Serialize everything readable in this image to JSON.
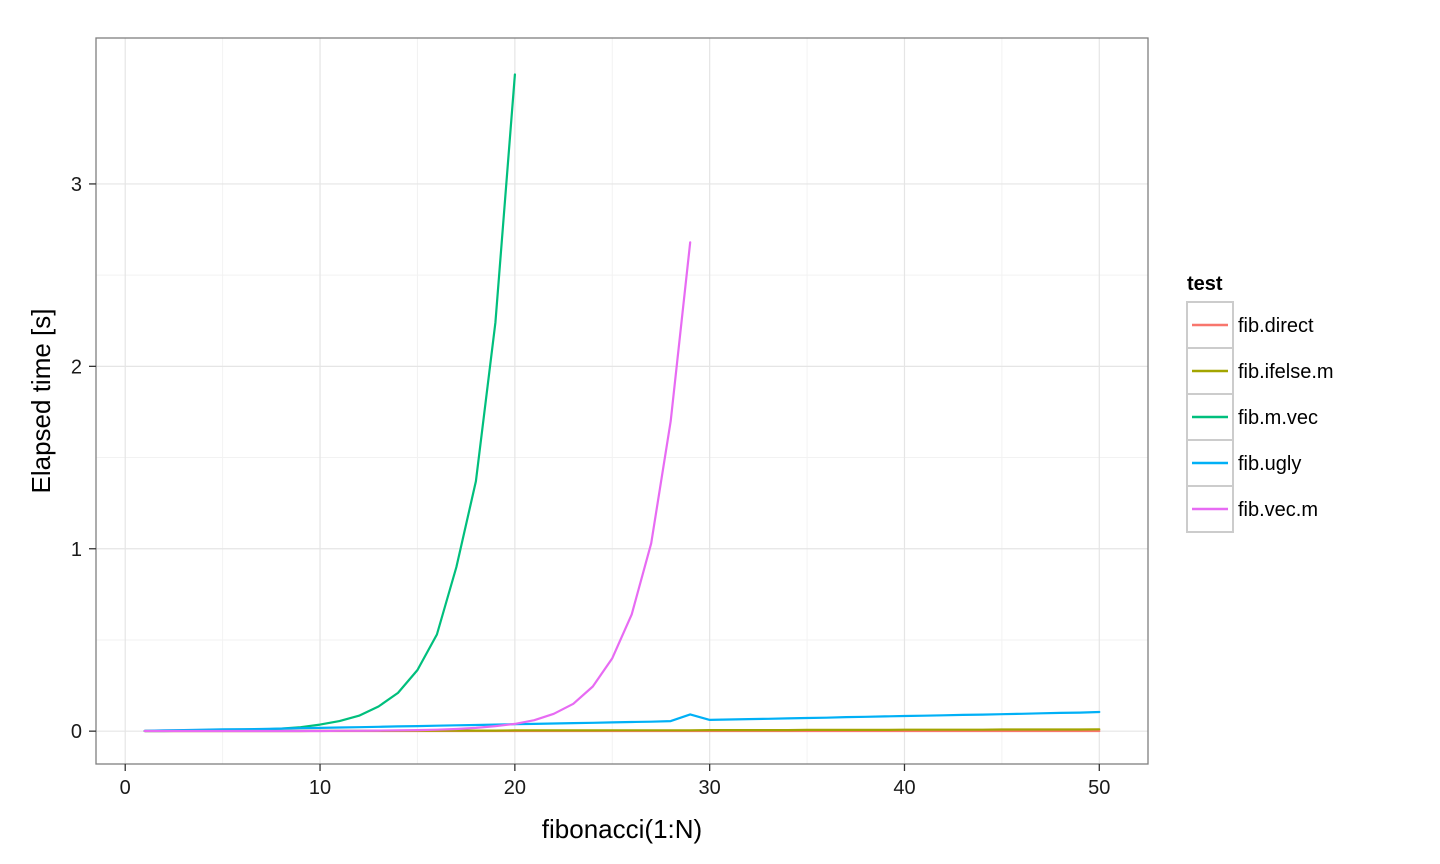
{
  "chart_data": {
    "type": "line",
    "title": "",
    "xlabel": "fibonacci(1:N)",
    "ylabel": "Elapsed time [s]",
    "xlim": [
      -1.5,
      52.5
    ],
    "ylim": [
      -0.18,
      3.8
    ],
    "x_ticks": [
      0,
      10,
      20,
      30,
      40,
      50
    ],
    "y_ticks": [
      0,
      1,
      2,
      3
    ],
    "grid": true,
    "legend": {
      "title": "test",
      "position": "right"
    },
    "series": [
      {
        "name": "fib.direct",
        "color": "#F8766D",
        "x": [
          1,
          2,
          3,
          4,
          5,
          6,
          7,
          8,
          9,
          10,
          11,
          12,
          13,
          14,
          15,
          16,
          17,
          18,
          19,
          20,
          21,
          22,
          23,
          24,
          25,
          26,
          27,
          28,
          29,
          30,
          31,
          32,
          33,
          34,
          35,
          36,
          37,
          38,
          39,
          40,
          41,
          42,
          43,
          44,
          45,
          46,
          47,
          48,
          49,
          50
        ],
        "y": [
          0.001,
          0.001,
          0.001,
          0.001,
          0.001,
          0.001,
          0.001,
          0.001,
          0.001,
          0.001,
          0.001,
          0.001,
          0.001,
          0.001,
          0.001,
          0.001,
          0.001,
          0.001,
          0.001,
          0.001,
          0.001,
          0.001,
          0.001,
          0.001,
          0.001,
          0.001,
          0.001,
          0.001,
          0.001,
          0.001,
          0.001,
          0.001,
          0.001,
          0.001,
          0.001,
          0.001,
          0.001,
          0.001,
          0.001,
          0.001,
          0.001,
          0.001,
          0.001,
          0.001,
          0.001,
          0.001,
          0.001,
          0.001,
          0.001,
          0.001
        ]
      },
      {
        "name": "fib.ifelse.m",
        "color": "#A3A500",
        "x": [
          1,
          2,
          3,
          4,
          5,
          6,
          7,
          8,
          9,
          10,
          11,
          12,
          13,
          14,
          15,
          16,
          17,
          18,
          19,
          20,
          21,
          22,
          23,
          24,
          25,
          26,
          27,
          28,
          29,
          30,
          31,
          32,
          33,
          34,
          35,
          36,
          37,
          38,
          39,
          40,
          41,
          42,
          43,
          44,
          45,
          46,
          47,
          48,
          49,
          50
        ],
        "y": [
          0.001,
          0.001,
          0.001,
          0.001,
          0.001,
          0.001,
          0.001,
          0.001,
          0.001,
          0.002,
          0.002,
          0.002,
          0.002,
          0.002,
          0.003,
          0.003,
          0.003,
          0.003,
          0.003,
          0.004,
          0.004,
          0.004,
          0.004,
          0.004,
          0.005,
          0.005,
          0.005,
          0.005,
          0.005,
          0.006,
          0.006,
          0.006,
          0.006,
          0.006,
          0.007,
          0.007,
          0.007,
          0.007,
          0.007,
          0.008,
          0.008,
          0.008,
          0.008,
          0.008,
          0.009,
          0.009,
          0.009,
          0.009,
          0.009,
          0.01
        ]
      },
      {
        "name": "fib.m.vec",
        "color": "#00BF7D",
        "x": [
          1,
          2,
          3,
          4,
          5,
          6,
          7,
          8,
          9,
          10,
          11,
          12,
          13,
          14,
          15,
          16,
          17,
          18,
          19,
          20
        ],
        "y": [
          0.001,
          0.001,
          0.002,
          0.003,
          0.004,
          0.006,
          0.009,
          0.014,
          0.022,
          0.036,
          0.055,
          0.085,
          0.135,
          0.21,
          0.335,
          0.53,
          0.9,
          1.37,
          2.24,
          3.6
        ]
      },
      {
        "name": "fib.ugly",
        "color": "#00B0F6",
        "x": [
          1,
          2,
          3,
          4,
          5,
          6,
          7,
          8,
          9,
          10,
          11,
          12,
          13,
          14,
          15,
          16,
          17,
          18,
          19,
          20,
          21,
          22,
          23,
          24,
          25,
          26,
          27,
          28,
          29,
          30,
          31,
          32,
          33,
          34,
          35,
          36,
          37,
          38,
          39,
          40,
          41,
          42,
          43,
          44,
          45,
          46,
          47,
          48,
          49,
          50
        ],
        "y": [
          0.002,
          0.004,
          0.006,
          0.008,
          0.01,
          0.011,
          0.012,
          0.014,
          0.016,
          0.018,
          0.02,
          0.022,
          0.024,
          0.026,
          0.028,
          0.03,
          0.032,
          0.034,
          0.036,
          0.038,
          0.04,
          0.042,
          0.044,
          0.046,
          0.048,
          0.05,
          0.052,
          0.055,
          0.092,
          0.062,
          0.064,
          0.066,
          0.068,
          0.07,
          0.072,
          0.074,
          0.077,
          0.079,
          0.081,
          0.083,
          0.085,
          0.087,
          0.089,
          0.091,
          0.093,
          0.095,
          0.098,
          0.1,
          0.102,
          0.105
        ]
      },
      {
        "name": "fib.vec.m",
        "color": "#E76BF3",
        "x": [
          1,
          2,
          3,
          4,
          5,
          6,
          7,
          8,
          9,
          10,
          11,
          12,
          13,
          14,
          15,
          16,
          17,
          18,
          19,
          20,
          21,
          22,
          23,
          24,
          25,
          26,
          27,
          28,
          29
        ],
        "y": [
          0.001,
          0.001,
          0.001,
          0.001,
          0.001,
          0.001,
          0.001,
          0.001,
          0.001,
          0.001,
          0.002,
          0.002,
          0.003,
          0.004,
          0.006,
          0.008,
          0.012,
          0.018,
          0.028,
          0.04,
          0.06,
          0.095,
          0.15,
          0.245,
          0.4,
          0.64,
          1.03,
          1.7,
          2.68
        ]
      }
    ]
  }
}
